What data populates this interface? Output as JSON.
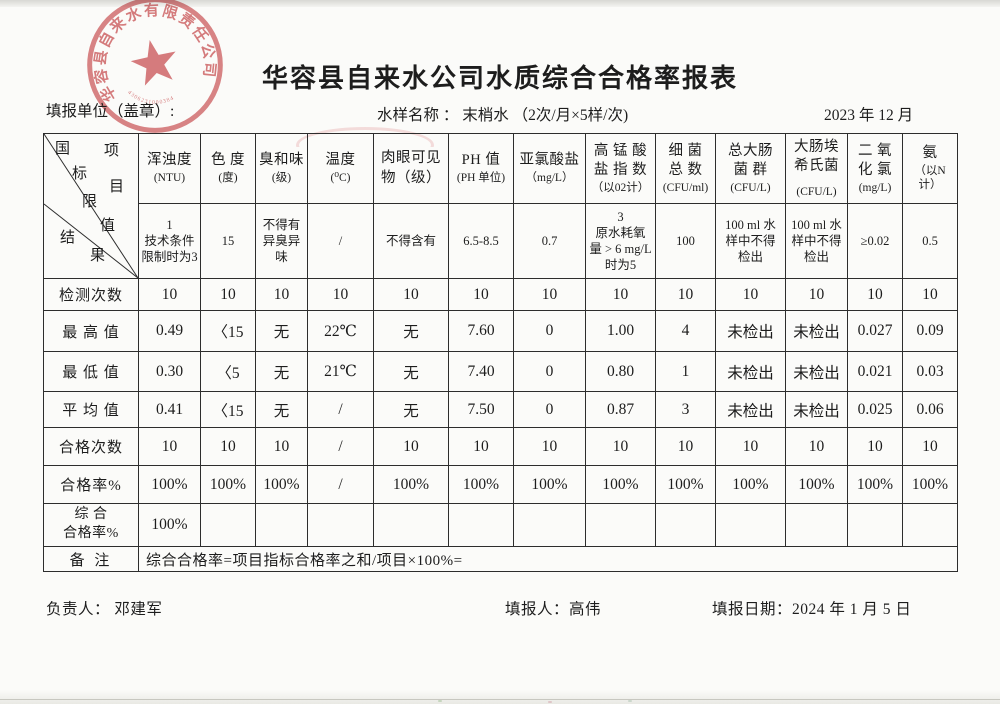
{
  "stamp": {
    "company": "华容县自来水有限责任公司",
    "number": "4306231000384"
  },
  "header": {
    "title": "华容县自来水公司水质综合合格率报表",
    "unit_label": "填报单位（盖章）:",
    "sample_label": "水样名称 ： 末梢水 （2次/月×5样/次)",
    "period": "2023 年 12 月"
  },
  "table": {
    "corner": {
      "top_left": "国标",
      "top_right": "项目",
      "middle": "限值",
      "bottom_left": "结果"
    },
    "columns": [
      {
        "name": "浑浊度",
        "unit": "(NTU)"
      },
      {
        "name": "色 度",
        "unit": "(度)"
      },
      {
        "name": "臭和味",
        "unit": "(级)"
      },
      {
        "name": "温度",
        "unit": "(⁰C)"
      },
      {
        "name": "肉眼可见\n物（级）",
        "unit": ""
      },
      {
        "name": "PH 值",
        "unit": "(PH 单位)"
      },
      {
        "name": "亚氯酸盐",
        "unit": "（mg/L）"
      },
      {
        "name": "高 锰 酸\n盐 指 数",
        "unit": "（以02计）"
      },
      {
        "name": "细 菌\n总 数",
        "unit": "(CFU/ml)"
      },
      {
        "name": "总大肠\n菌 群",
        "unit": "(CFU/L)"
      },
      {
        "name": "大肠埃\n希氏菌",
        "unit": "(CFU/L)",
        "unit_gap": true
      },
      {
        "name": "二 氧\n化 氯",
        "unit": "(mg/L)"
      },
      {
        "name": "氨",
        "unit": "（以N\n计）"
      }
    ],
    "limits": [
      "1\n技术条件\n限制时为3",
      "15",
      "不得有\n异臭异\n味",
      "/",
      "不得含有",
      "6.5-8.5",
      "0.7",
      "3\n原水耗氧\n量 > 6 mg/L\n时为5",
      "100",
      "100 ml 水\n样中不得\n检出",
      "100 ml 水\n样中不得\n检出",
      "≥0.02",
      "0.5"
    ],
    "rows": [
      {
        "label": "检测次数",
        "values": [
          "10",
          "10",
          "10",
          "10",
          "10",
          "10",
          "10",
          "10",
          "10",
          "10",
          "10",
          "10",
          "10"
        ]
      },
      {
        "label": "最 高 值",
        "values": [
          "0.49",
          "〈15",
          "无",
          "22℃",
          "无",
          "7.60",
          "0",
          "1.00",
          "4",
          "未检出",
          "未检出",
          "0.027",
          "0.09"
        ]
      },
      {
        "label": "最 低 值",
        "values": [
          "0.30",
          "〈5",
          "无",
          "21℃",
          "无",
          "7.40",
          "0",
          "0.80",
          "1",
          "未检出",
          "未检出",
          "0.021",
          "0.03"
        ]
      },
      {
        "label": "平 均 值",
        "values": [
          "0.41",
          "〈15",
          "无",
          "/",
          "无",
          "7.50",
          "0",
          "0.87",
          "3",
          "未检出",
          "未检出",
          "0.025",
          "0.06"
        ]
      },
      {
        "label": "合格次数",
        "values": [
          "10",
          "10",
          "10",
          "/",
          "10",
          "10",
          "10",
          "10",
          "10",
          "10",
          "10",
          "10",
          "10"
        ]
      },
      {
        "label": "合格率%",
        "values": [
          "100%",
          "100%",
          "100%",
          "/",
          "100%",
          "100%",
          "100%",
          "100%",
          "100%",
          "100%",
          "100%",
          "100%",
          "100%"
        ]
      },
      {
        "label": "综 合\n合格率%",
        "values": [
          "100%",
          "",
          "",
          "",
          "",
          "",
          "",
          "",
          "",
          "",
          "",
          "",
          ""
        ]
      }
    ],
    "remark_label": "备 注",
    "remark": "综合合格率=项目指标合格率之和/项目×100%="
  },
  "footer": {
    "responsible_label": "负责人：",
    "responsible": "邓建军",
    "filler_label": "填报人：",
    "filler": "高伟",
    "date_label": "填报日期：",
    "date": "2024 年 1 月 5 日"
  },
  "colors": {
    "stamp_red": "#cf5b5e",
    "ink": "#1d1d1d",
    "grid": "#2d2d2d"
  }
}
